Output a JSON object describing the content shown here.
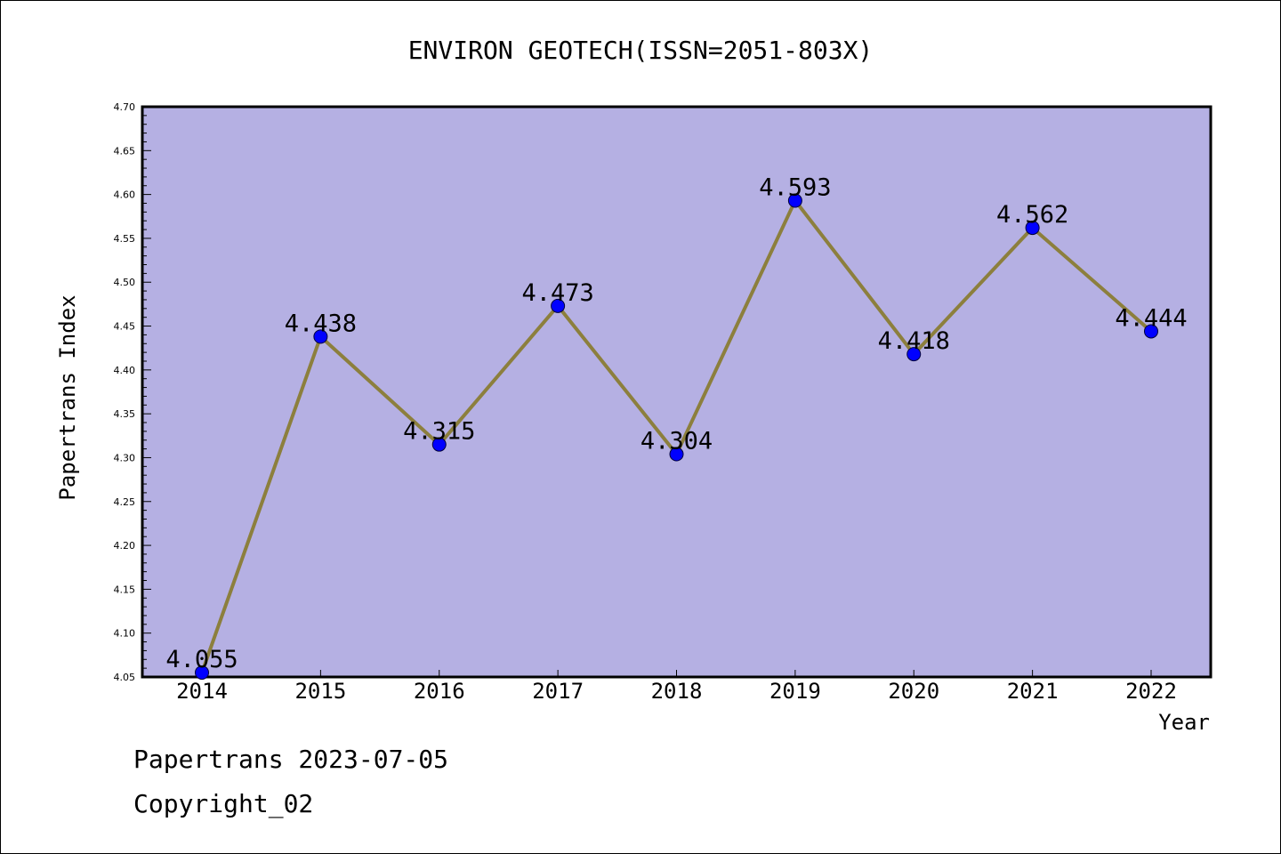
{
  "chart_data": {
    "type": "line",
    "title": "ENVIRON GEOTECH(ISSN=2051-803X)",
    "xlabel": "Year",
    "ylabel": "Papertrans Index",
    "categories": [
      "2014",
      "2015",
      "2016",
      "2017",
      "2018",
      "2019",
      "2020",
      "2021",
      "2022"
    ],
    "values": [
      4.055,
      4.438,
      4.315,
      4.473,
      4.304,
      4.593,
      4.418,
      4.562,
      4.444
    ],
    "value_labels": [
      "4.055",
      "4.438",
      "4.315",
      "4.473",
      "4.304",
      "4.593",
      "4.418",
      "4.562",
      "4.444"
    ],
    "ylim": [
      4.05,
      4.7
    ],
    "yticks": [
      "4.05",
      "4.10",
      "4.15",
      "4.20",
      "4.25",
      "4.30",
      "4.35",
      "4.40",
      "4.45",
      "4.50",
      "4.55",
      "4.60",
      "4.65",
      "4.70"
    ],
    "grid": false,
    "colors": {
      "plot_background": "#b5b0e3",
      "line": "#8c7f3d",
      "marker": "#0000ff"
    }
  },
  "footer": {
    "line1": "Papertrans 2023-07-05",
    "line2": "Copyright_02"
  }
}
